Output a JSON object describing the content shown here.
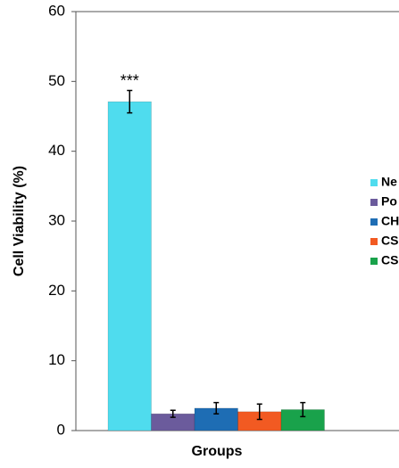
{
  "chart_data": {
    "type": "bar",
    "ylabel": "Cell Viability (%)",
    "xlabel": "Groups",
    "annotation": "***",
    "ylim": [
      0,
      60
    ],
    "yticks": [
      0,
      10,
      20,
      30,
      40,
      50,
      60
    ],
    "series": [
      {
        "name": "Ne",
        "color": "#4fdcee",
        "values": [
          47.1
        ],
        "errors": [
          1.6
        ]
      },
      {
        "name": "Po",
        "color": "#6b5b9c",
        "values": [
          2.4
        ],
        "errors": [
          0.5
        ]
      },
      {
        "name": "CH",
        "color": "#1e6db4",
        "values": [
          3.2
        ],
        "errors": [
          0.8
        ]
      },
      {
        "name": "CS",
        "color": "#f25a22",
        "values": [
          2.7
        ],
        "errors": [
          1.1
        ]
      },
      {
        "name": "CS",
        "color": "#19a24b",
        "values": [
          3.0
        ],
        "errors": [
          1.0
        ]
      }
    ]
  }
}
